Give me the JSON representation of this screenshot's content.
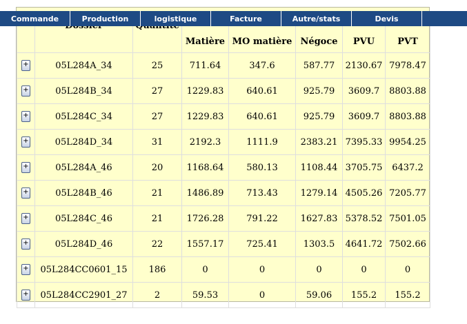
{
  "menu": [
    {
      "id": "commande",
      "label": "Commande"
    },
    {
      "id": "production",
      "label": "Production"
    },
    {
      "id": "logistique",
      "label": "logistique"
    },
    {
      "id": "facture",
      "label": "Facture"
    },
    {
      "id": "autre-stats",
      "label": "Autre/stats"
    },
    {
      "id": "devis",
      "label": "Devis"
    }
  ],
  "table": {
    "headers": {
      "dossier": "Dossier",
      "quantite": "Quantité",
      "matiere": "Matière",
      "mo_matiere": "MO matière",
      "negoce": "Négoce",
      "pvu": "PVU",
      "pvt": "PVT"
    },
    "expand_label": "+",
    "rows": [
      {
        "dossier": "05L284A_34",
        "quantite": "25",
        "matiere": "711.64",
        "mo_matiere": "347.6",
        "negoce": "587.77",
        "pvu": "2130.67",
        "pvt": "7978.47"
      },
      {
        "dossier": "05L284B_34",
        "quantite": "27",
        "matiere": "1229.83",
        "mo_matiere": "640.61",
        "negoce": "925.79",
        "pvu": "3609.7",
        "pvt": "8803.88"
      },
      {
        "dossier": "05L284C_34",
        "quantite": "27",
        "matiere": "1229.83",
        "mo_matiere": "640.61",
        "negoce": "925.79",
        "pvu": "3609.7",
        "pvt": "8803.88"
      },
      {
        "dossier": "05L284D_34",
        "quantite": "31",
        "matiere": "2192.3",
        "mo_matiere": "1111.9",
        "negoce": "2383.21",
        "pvu": "7395.33",
        "pvt": "9954.25"
      },
      {
        "dossier": "05L284A_46",
        "quantite": "20",
        "matiere": "1168.64",
        "mo_matiere": "580.13",
        "negoce": "1108.44",
        "pvu": "3705.75",
        "pvt": "6437.2"
      },
      {
        "dossier": "05L284B_46",
        "quantite": "21",
        "matiere": "1486.89",
        "mo_matiere": "713.43",
        "negoce": "1279.14",
        "pvu": "4505.26",
        "pvt": "7205.77"
      },
      {
        "dossier": "05L284C_46",
        "quantite": "21",
        "matiere": "1726.28",
        "mo_matiere": "791.22",
        "negoce": "1627.83",
        "pvu": "5378.52",
        "pvt": "7501.05"
      },
      {
        "dossier": "05L284D_46",
        "quantite": "22",
        "matiere": "1557.17",
        "mo_matiere": "725.41",
        "negoce": "1303.5",
        "pvu": "4641.72",
        "pvt": "7502.66"
      },
      {
        "dossier": "05L284CC0601_15",
        "quantite": "186",
        "matiere": "0",
        "mo_matiere": "0",
        "negoce": "0",
        "pvu": "0",
        "pvt": "0"
      },
      {
        "dossier": "05L284CC2901_27",
        "quantite": "2",
        "matiere": "59.53",
        "mo_matiere": "0",
        "negoce": "59.06",
        "pvu": "155.2",
        "pvt": "155.2"
      }
    ]
  },
  "colors": {
    "menu_background": "#1e4a84",
    "menu_text": "#ffffff",
    "panel_background": "#ffffcc"
  }
}
